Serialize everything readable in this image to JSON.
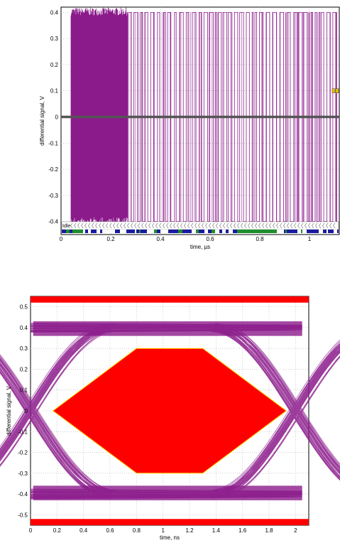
{
  "chart_data": [
    {
      "type": "line",
      "title": "",
      "xlabel": "time, µs",
      "ylabel": "differential signal, V",
      "xlim": [
        0,
        1.12
      ],
      "ylim": [
        -0.45,
        0.42
      ],
      "xticks": [
        "0",
        "0.2",
        "0.4",
        "0.6",
        "0.8",
        "1"
      ],
      "yticks": [
        "-0.4",
        "-0.3",
        "-0.2",
        "-0.1",
        "0",
        "0.1",
        "0.2",
        "0.3",
        "0.4"
      ],
      "grid": true,
      "series": [
        {
          "color": "#8b1a8b",
          "description_values": {
            "idle_level_before": 0,
            "dense_burst_interval": [
              0.04,
              0.27
            ],
            "sparse_toggle_interval": [
              0.27,
              1.11
            ],
            "high_level": 0.4,
            "low_level": -0.4
          }
        },
        {
          "color": "#555555",
          "description_values": {
            "flat_level": 0,
            "interval": [
              0.0,
              1.12
            ]
          }
        }
      ],
      "annotations": [
        "Idle"
      ],
      "colors": {
        "signal": "#8b1a8b",
        "decode_white": "#ffffff",
        "decode_blue": "#1a1aa0",
        "decode_green": "#1c8f2c",
        "marker_yellow": "#e8c200"
      }
    },
    {
      "type": "line",
      "title": "",
      "xlabel": "time, ns",
      "ylabel": "differential signal, V",
      "xlim": [
        0,
        2.1
      ],
      "ylim": [
        -0.55,
        0.55
      ],
      "xticks": [
        "0",
        "0.2",
        "0.4",
        "0.6",
        "0.8",
        "1",
        "1.2",
        "1.4",
        "1.6",
        "1.8",
        "2"
      ],
      "yticks": [
        "-0.5",
        "-0.4",
        "-0.3",
        "-0.2",
        "-0.1",
        "0",
        "0.1",
        "0.2",
        "0.3",
        "0.4",
        "0.5"
      ],
      "grid": true,
      "eye_mask": {
        "polygon": [
          [
            0.17,
            0
          ],
          [
            0.8,
            0.3
          ],
          [
            1.3,
            0.3
          ],
          [
            1.93,
            0
          ],
          [
            1.3,
            -0.3
          ],
          [
            0.8,
            -0.3
          ]
        ],
        "top_band": [
          0.52,
          0.55
        ],
        "bottom_band": [
          -0.55,
          -0.52
        ],
        "color": "#ff0000"
      },
      "eye_levels": {
        "high": 0.4,
        "low": -0.4,
        "crossing_times": [
          0.0,
          2.0
        ]
      },
      "colors": {
        "eye": "#8b1a8b",
        "mask": "#ff0000",
        "mask_edge": "#ffd200"
      }
    }
  ]
}
